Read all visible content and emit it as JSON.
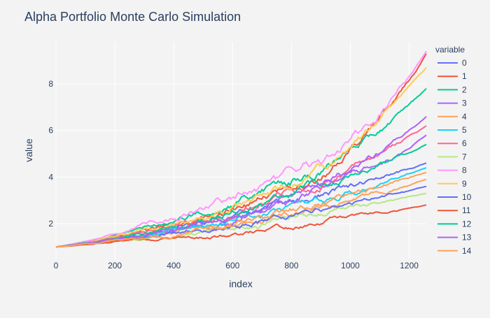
{
  "chart_data": {
    "type": "line",
    "title": "Alpha Portfolio Monte Carlo Simulation",
    "xlabel": "index",
    "ylabel": "value",
    "xlim": [
      0,
      1258
    ],
    "ylim": [
      0.5,
      9.8
    ],
    "x_ticks": [
      0,
      200,
      400,
      600,
      800,
      1000,
      1200
    ],
    "y_ticks": [
      2,
      4,
      6,
      8
    ],
    "grid": true,
    "legend": {
      "title": "variable",
      "placement": "right"
    },
    "background": "#f3f3f3",
    "plot_background": "#f3f3f3",
    "colors": [
      "#636efa",
      "#ef553b",
      "#00cc96",
      "#ab63fa",
      "#ffa15a",
      "#19d3f3",
      "#ff6692",
      "#b6e880",
      "#ff97ff",
      "#fecb52"
    ],
    "series": [
      {
        "name": "0",
        "x": [
          0,
          300,
          600,
          900,
          1258
        ],
        "values": [
          1.0,
          1.6,
          2.3,
          3.2,
          4.6
        ]
      },
      {
        "name": "1",
        "x": [
          0,
          300,
          600,
          900,
          1258
        ],
        "values": [
          1.0,
          1.7,
          2.6,
          4.1,
          9.3
        ]
      },
      {
        "name": "2",
        "x": [
          0,
          300,
          600,
          900,
          1258
        ],
        "values": [
          1.0,
          1.8,
          2.9,
          4.3,
          7.8
        ]
      },
      {
        "name": "3",
        "x": [
          0,
          300,
          600,
          900,
          1258
        ],
        "values": [
          1.0,
          1.5,
          2.2,
          3.4,
          5.8
        ]
      },
      {
        "name": "4",
        "x": [
          0,
          300,
          600,
          900,
          1258
        ],
        "values": [
          1.0,
          1.4,
          2.0,
          2.7,
          3.9
        ]
      },
      {
        "name": "5",
        "x": [
          0,
          300,
          600,
          900,
          1258
        ],
        "values": [
          1.0,
          1.5,
          2.1,
          3.0,
          4.4
        ]
      },
      {
        "name": "6",
        "x": [
          0,
          300,
          600,
          900,
          1258
        ],
        "values": [
          1.0,
          1.6,
          2.4,
          3.8,
          6.2
        ]
      },
      {
        "name": "7",
        "x": [
          0,
          300,
          600,
          900,
          1258
        ],
        "values": [
          1.0,
          1.3,
          1.8,
          2.5,
          3.3
        ]
      },
      {
        "name": "8",
        "x": [
          0,
          300,
          600,
          900,
          1258
        ],
        "values": [
          1.0,
          1.9,
          3.1,
          4.6,
          9.4
        ]
      },
      {
        "name": "9",
        "x": [
          0,
          300,
          600,
          900,
          1258
        ],
        "values": [
          1.0,
          1.7,
          2.7,
          4.4,
          8.7
        ]
      },
      {
        "name": "10",
        "x": [
          0,
          300,
          600,
          900,
          1258
        ],
        "values": [
          1.0,
          1.4,
          1.9,
          2.6,
          3.6
        ]
      },
      {
        "name": "11",
        "x": [
          0,
          300,
          600,
          900,
          1258
        ],
        "values": [
          1.0,
          1.3,
          1.5,
          2.1,
          2.8
        ]
      },
      {
        "name": "12",
        "x": [
          0,
          300,
          600,
          900,
          1258
        ],
        "values": [
          1.0,
          1.6,
          2.5,
          3.7,
          5.4
        ]
      },
      {
        "name": "13",
        "x": [
          0,
          300,
          600,
          900,
          1258
        ],
        "values": [
          1.0,
          1.5,
          2.3,
          3.6,
          6.6
        ]
      },
      {
        "name": "14",
        "x": [
          0,
          300,
          600,
          900,
          1258
        ],
        "values": [
          1.0,
          1.4,
          2.0,
          2.9,
          4.2
        ]
      }
    ]
  }
}
